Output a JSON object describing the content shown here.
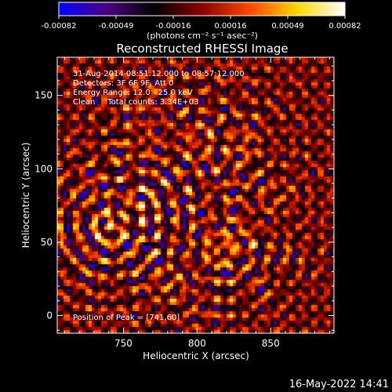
{
  "chart_data": {
    "type": "heatmap",
    "title": "Reconstructed RHESSI Image",
    "xlabel": "Heliocentric X (arcsec)",
    "ylabel": "Heliocentric Y (arcsec)",
    "xlim": [
      705,
      893
    ],
    "ylim": [
      -12,
      176
    ],
    "xticks": [
      750,
      800,
      850
    ],
    "yticks": [
      0,
      50,
      100,
      150
    ],
    "colorbar": {
      "label": "(photons cm⁻² s⁻¹ asec⁻²)",
      "range": [
        -0.00082,
        0.00082
      ],
      "ticks": [
        "-0.00082",
        "-0.00049",
        "-0.00016",
        "0.00016",
        "0.00049",
        "0.00082"
      ],
      "colormap": [
        "#0000ff",
        "#4b0082",
        "#000000",
        "#8b0000",
        "#ff4500",
        "#ffd700",
        "#ffffff"
      ]
    },
    "annotations": [
      "31-Aug-2014 08:51:12.000 to 08:57:12.000",
      "Detectors: 3F 6F 9F, Att 0",
      "Energy Range: 12.0 - 25.0 keV",
      "Clean     Total counts: 3.34E+03"
    ],
    "peak_label": "Position of Peak = [741,60]",
    "peak": [
      741,
      60
    ],
    "sources": [
      {
        "x": 741,
        "y": 60,
        "amp": 0.00082
      },
      {
        "x": 762,
        "y": 75,
        "amp": 0.00055
      },
      {
        "x": 815,
        "y": 45,
        "amp": 0.0007
      },
      {
        "x": 830,
        "y": 55,
        "amp": 0.00045
      },
      {
        "x": 800,
        "y": 118,
        "amp": 0.0005
      },
      {
        "x": 830,
        "y": 115,
        "amp": 0.00045
      },
      {
        "x": 760,
        "y": 120,
        "amp": 0.00035
      },
      {
        "x": 760,
        "y": 150,
        "amp": 0.0003
      },
      {
        "x": 780,
        "y": 20,
        "amp": 0.00035
      },
      {
        "x": 855,
        "y": 80,
        "amp": 0.0003
      }
    ]
  },
  "timestamp": "16-May-2022 14:41"
}
